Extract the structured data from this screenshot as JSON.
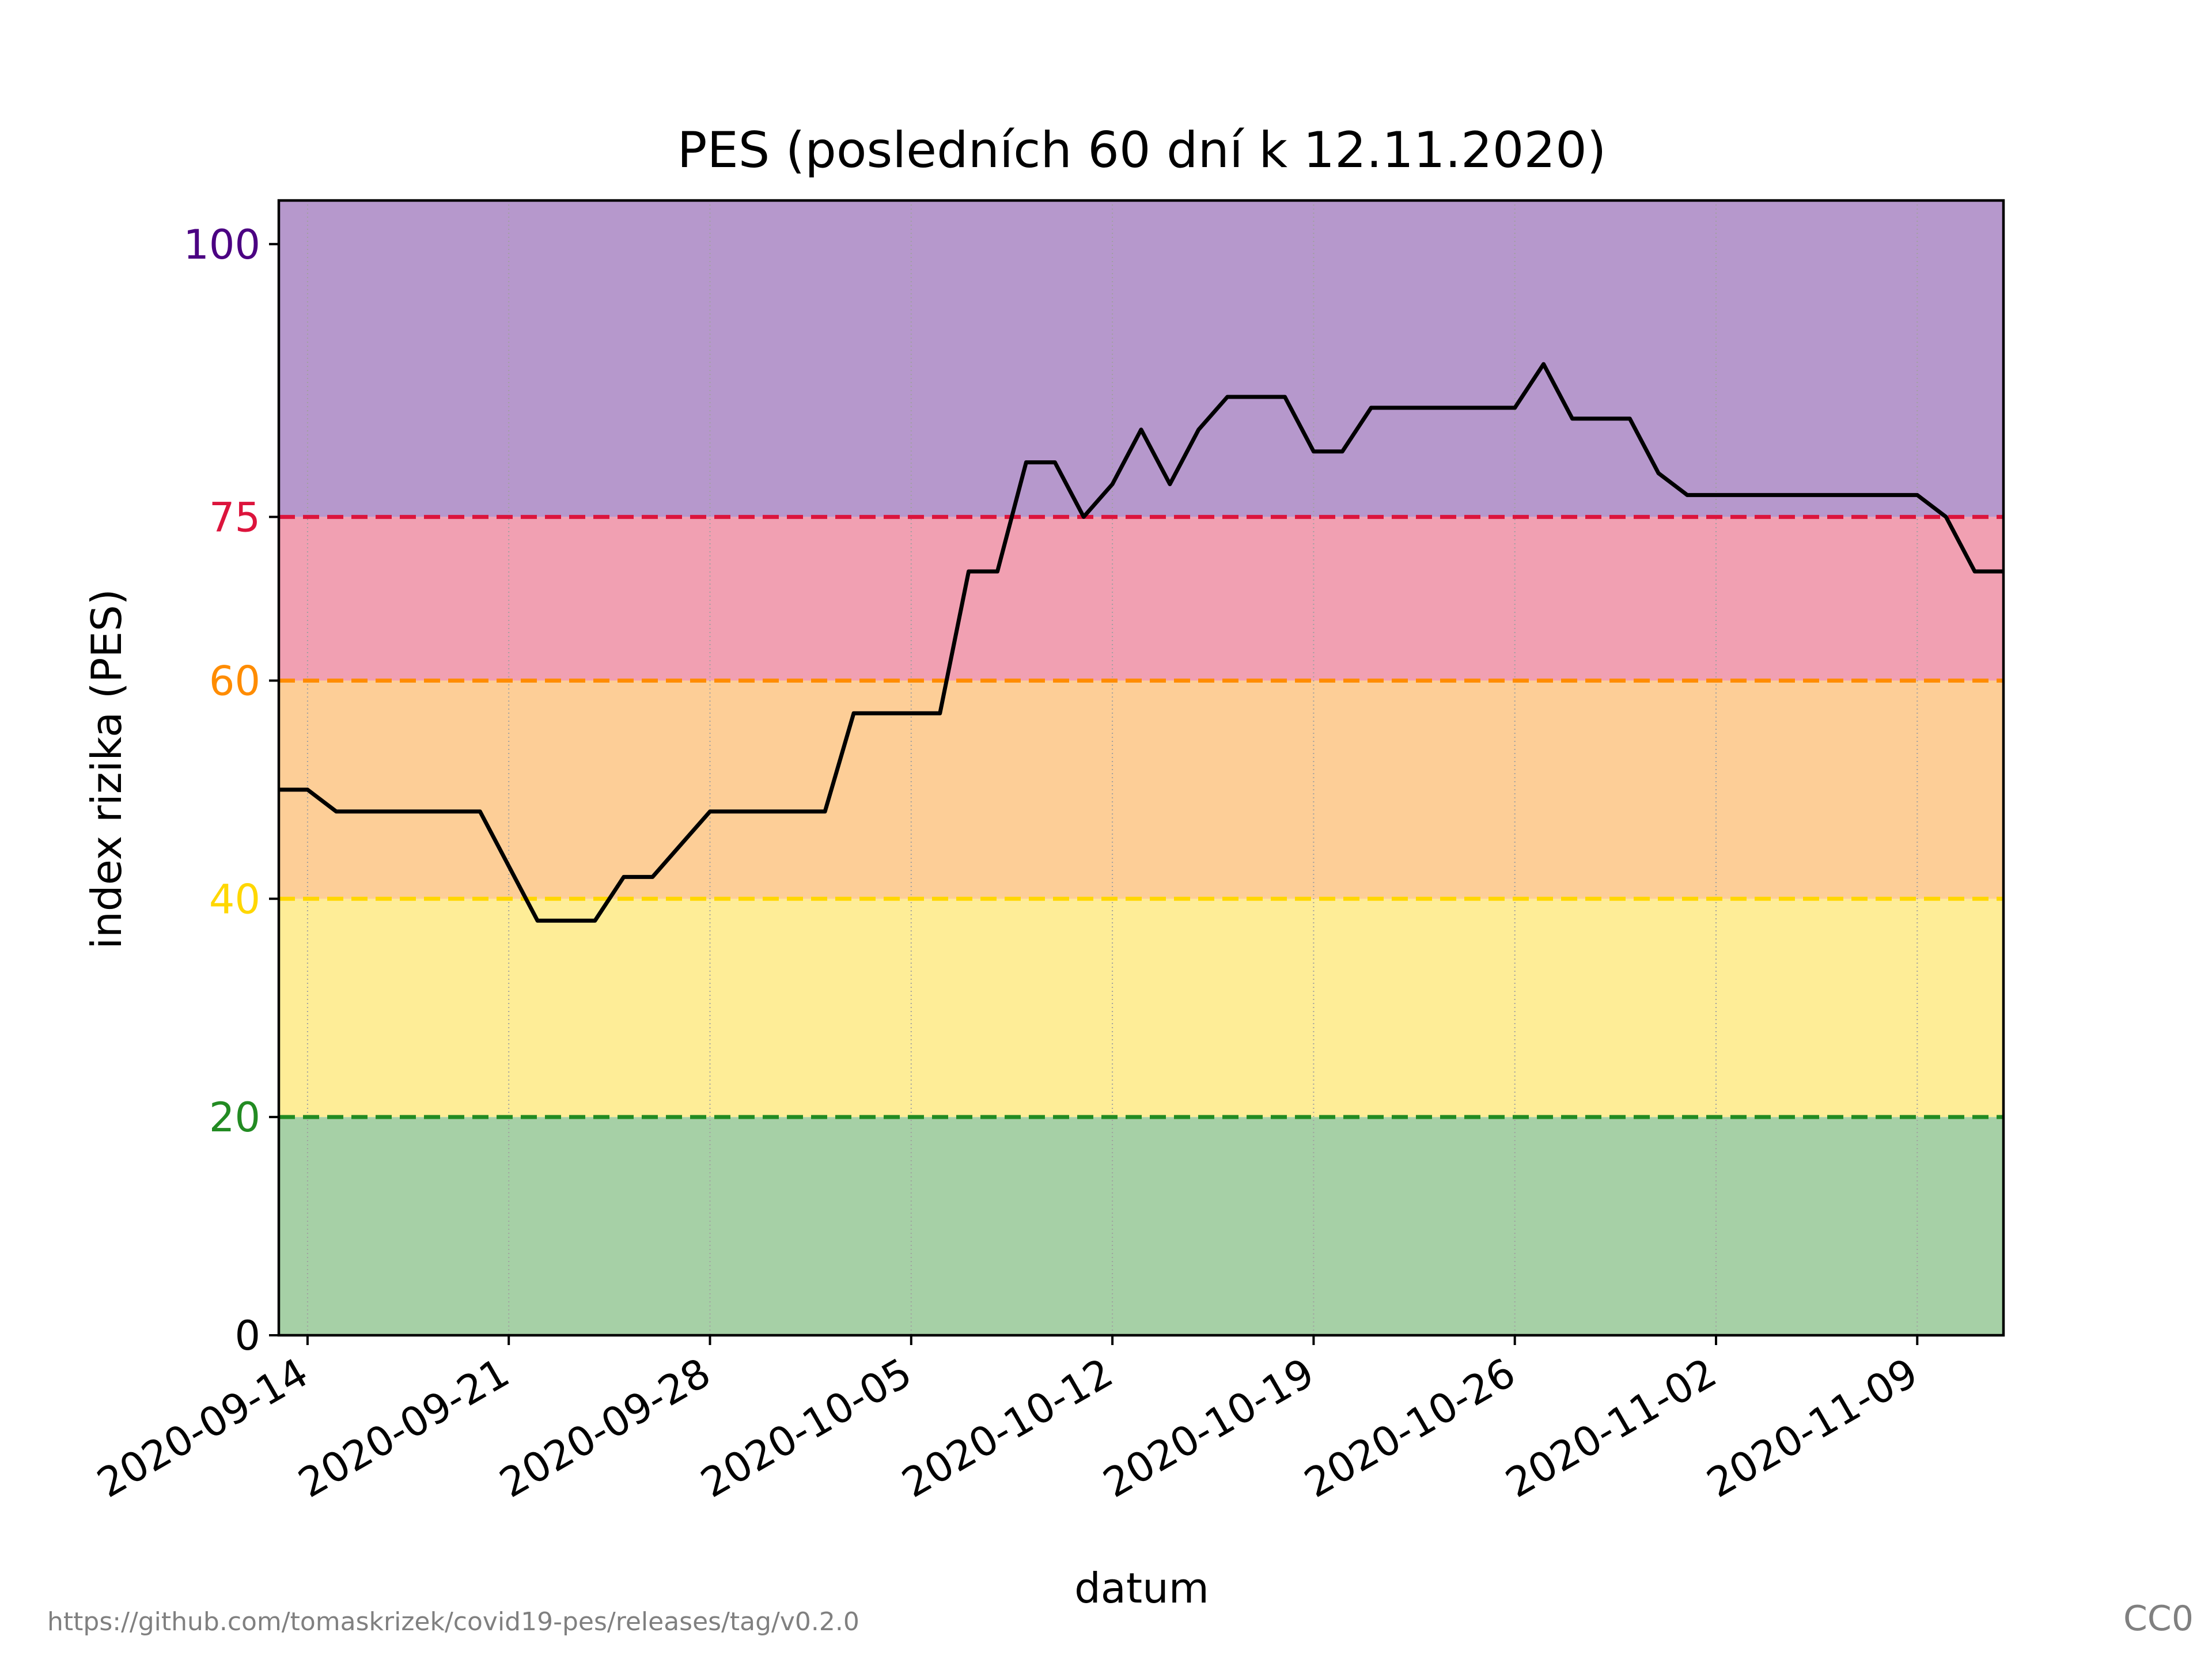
{
  "chart_data": {
    "type": "line",
    "title": "PES (posledních 60 dní k 12.11.2020)",
    "xlabel": "datum",
    "ylabel": "index rizika (PES)",
    "ylim": [
      0,
      104
    ],
    "yticks": [
      {
        "value": 0,
        "label": "0",
        "color": "#000000"
      },
      {
        "value": 20,
        "label": "20",
        "color": "#228B22"
      },
      {
        "value": 40,
        "label": "40",
        "color": "#FFD700"
      },
      {
        "value": 60,
        "label": "60",
        "color": "#FF8C00"
      },
      {
        "value": 75,
        "label": "75",
        "color": "#DC143C"
      },
      {
        "value": 100,
        "label": "100",
        "color": "#4B0082"
      }
    ],
    "xlim": [
      "2020-09-13",
      "2020-11-12"
    ],
    "xticks": [
      "2020-09-14",
      "2020-09-21",
      "2020-09-28",
      "2020-10-05",
      "2020-10-12",
      "2020-10-19",
      "2020-10-26",
      "2020-11-02",
      "2020-11-09"
    ],
    "grid": "vertical dotted",
    "bands": [
      {
        "from": 0,
        "to": 20,
        "color": "#A6D0A6"
      },
      {
        "from": 20,
        "to": 40,
        "color": "#FEED97"
      },
      {
        "from": 40,
        "to": 60,
        "color": "#FDCE97"
      },
      {
        "from": 60,
        "to": 75,
        "color": "#F1A0B2"
      },
      {
        "from": 75,
        "to": 104,
        "color": "#B698CC"
      }
    ],
    "thresholds": [
      {
        "value": 20,
        "color": "#228B22"
      },
      {
        "value": 40,
        "color": "#FFD700"
      },
      {
        "value": 60,
        "color": "#FF8C00"
      },
      {
        "value": 75,
        "color": "#DC143C"
      }
    ],
    "series": [
      {
        "color": "#000000",
        "x": [
          "2020-09-13",
          "2020-09-14",
          "2020-09-15",
          "2020-09-16",
          "2020-09-17",
          "2020-09-18",
          "2020-09-19",
          "2020-09-20",
          "2020-09-21",
          "2020-09-22",
          "2020-09-23",
          "2020-09-24",
          "2020-09-25",
          "2020-09-26",
          "2020-09-27",
          "2020-09-28",
          "2020-09-29",
          "2020-09-30",
          "2020-10-01",
          "2020-10-02",
          "2020-10-03",
          "2020-10-04",
          "2020-10-05",
          "2020-10-06",
          "2020-10-07",
          "2020-10-08",
          "2020-10-09",
          "2020-10-10",
          "2020-10-11",
          "2020-10-12",
          "2020-10-13",
          "2020-10-14",
          "2020-10-15",
          "2020-10-16",
          "2020-10-17",
          "2020-10-18",
          "2020-10-19",
          "2020-10-20",
          "2020-10-21",
          "2020-10-22",
          "2020-10-23",
          "2020-10-24",
          "2020-10-25",
          "2020-10-26",
          "2020-10-27",
          "2020-10-28",
          "2020-10-29",
          "2020-10-30",
          "2020-10-31",
          "2020-11-01",
          "2020-11-02",
          "2020-11-03",
          "2020-11-04",
          "2020-11-05",
          "2020-11-06",
          "2020-11-07",
          "2020-11-08",
          "2020-11-09",
          "2020-11-10",
          "2020-11-11",
          "2020-11-12"
        ],
        "values": [
          50,
          50,
          48,
          48,
          48,
          48,
          48,
          48,
          43,
          38,
          38,
          38,
          42,
          42,
          45,
          48,
          48,
          48,
          48,
          48,
          57,
          57,
          57,
          57,
          70,
          70,
          80,
          80,
          75,
          78,
          83,
          78,
          83,
          86,
          86,
          86,
          81,
          81,
          85,
          85,
          85,
          85,
          85,
          85,
          89,
          84,
          84,
          84,
          79,
          77,
          77,
          77,
          77,
          77,
          77,
          77,
          77,
          77,
          75,
          70,
          70
        ]
      }
    ]
  },
  "footer": {
    "source_url": "https://github.com/tomaskrizek/covid19-pes/releases/tag/v0.2.0",
    "license": "CC0"
  }
}
